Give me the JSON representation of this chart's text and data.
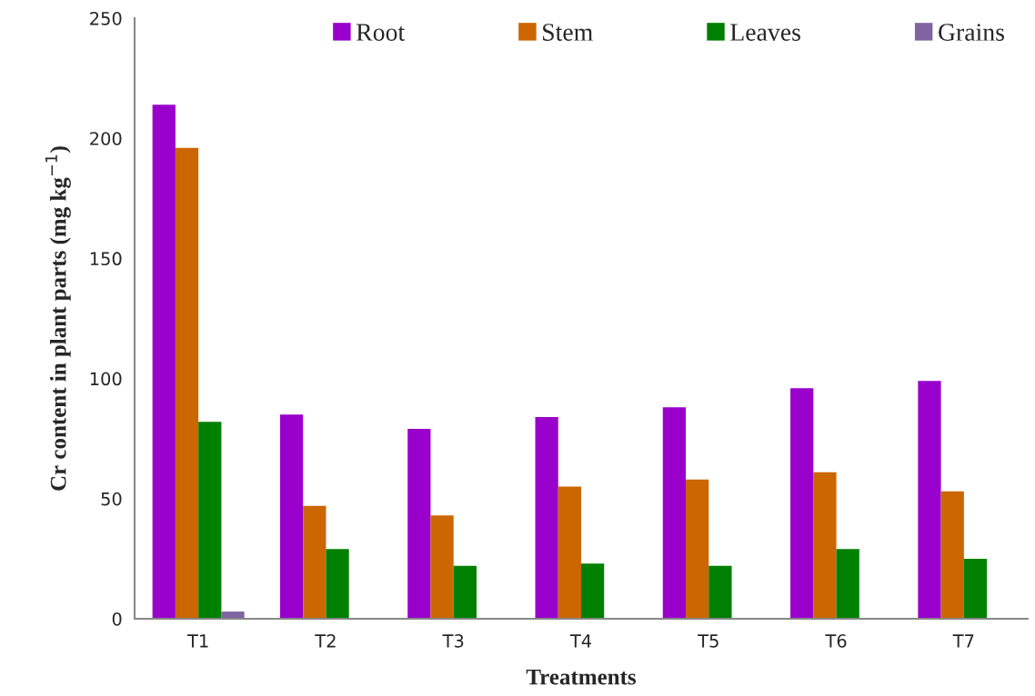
{
  "chart_data": {
    "type": "bar",
    "xlabel": "Treatments",
    "ylabel": "Cr content in plant parts (mg kg$^{−1}$)",
    "categories": [
      "T1",
      "T2",
      "T3",
      "T4",
      "T5",
      "T6",
      "T7"
    ],
    "series": [
      {
        "name": "Root",
        "color": "#9900cc",
        "values": [
          214,
          85,
          79,
          84,
          88,
          96,
          99
        ]
      },
      {
        "name": "Stem",
        "color": "#cc6600",
        "values": [
          196,
          47,
          43,
          55,
          58,
          61,
          53
        ]
      },
      {
        "name": "Leaves",
        "color": "#008000",
        "values": [
          82,
          29,
          22,
          23,
          22,
          29,
          25
        ]
      },
      {
        "name": "Grains",
        "color": "#8064a2",
        "values": [
          3,
          null,
          null,
          null,
          null,
          null,
          null
        ]
      }
    ],
    "ylim": [
      0,
      250
    ],
    "yticks": [
      0,
      50,
      100,
      150,
      200,
      250
    ],
    "grid": false,
    "legend": "top right"
  }
}
